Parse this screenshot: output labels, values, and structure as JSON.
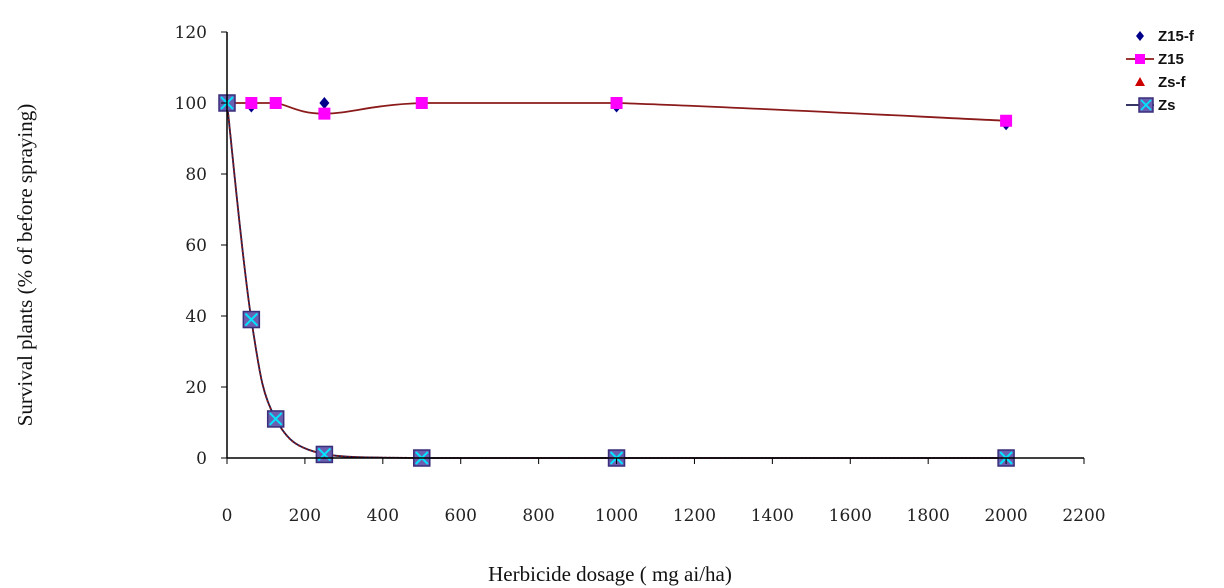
{
  "chart_data": {
    "type": "line",
    "title": "",
    "xlabel": "Herbicide dosage ( mg ai/ha)",
    "ylabel": "Survival plants (% of before spraying)",
    "xlim": [
      0,
      2200
    ],
    "ylim": [
      0,
      120
    ],
    "xticks": [
      "0",
      "200",
      "400",
      "600",
      "800",
      "1000",
      "1200",
      "1400",
      "1600",
      "1800",
      "2000",
      "2200"
    ],
    "yticks": [
      "0",
      "20",
      "40",
      "60",
      "80",
      "100",
      "120"
    ],
    "grid": false,
    "legend_position": "top-right",
    "series": [
      {
        "name": "Z15-f",
        "marker": "diamond",
        "color": "#00008b",
        "line": "none",
        "x": [
          0,
          62.5,
          125,
          250,
          500,
          1000,
          2000
        ],
        "y": [
          100,
          99,
          100,
          100,
          100,
          99,
          94
        ]
      },
      {
        "name": "Z15",
        "marker": "square",
        "color": "#ff00ff",
        "line": "solid",
        "line_color": "#8b1a1a",
        "x": [
          0,
          62.5,
          125,
          250,
          500,
          1000,
          2000
        ],
        "y": [
          100,
          100,
          100,
          97,
          100,
          100,
          95
        ]
      },
      {
        "name": "Zs-f",
        "marker": "triangle",
        "color": "#cc0000",
        "line": "dotted",
        "line_color": "#8b1a1a",
        "x": [
          0,
          62.5,
          125,
          250,
          500,
          1000,
          2000
        ],
        "y": [
          100,
          39,
          11,
          1,
          0,
          0,
          0
        ]
      },
      {
        "name": "Zs",
        "marker": "x-square",
        "color": "#6b5fb0",
        "line": "solid",
        "line_color": "#1a1a50",
        "x": [
          0,
          62.5,
          125,
          250,
          500,
          1000,
          2000
        ],
        "y": [
          100,
          39,
          11,
          1,
          0,
          0,
          0
        ]
      }
    ]
  }
}
